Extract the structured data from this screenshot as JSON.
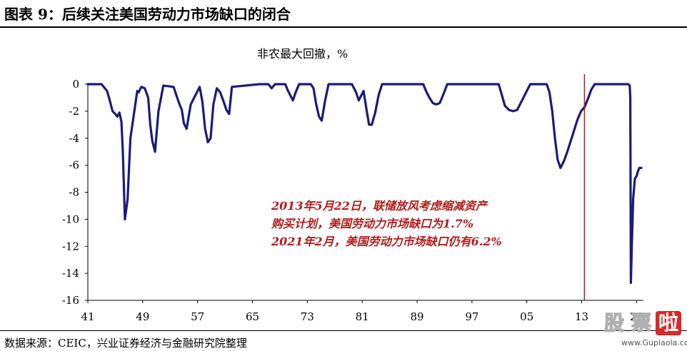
{
  "figure": {
    "title": "图表 9：后续关注美国劳动力市场缺口的闭合",
    "source": "数据来源：CEIC，兴业证券经济与金融研究院整理"
  },
  "annotation": {
    "line1": "2013年5月22日，联储放风考虑缩减资产",
    "line2": "购买计划，美国劳动力市场缺口为1.7%",
    "line3": "2021年2月，美国劳动力市场缺口仍有6.2%"
  },
  "watermark": {
    "chars": [
      "股",
      "票",
      "啦"
    ],
    "url": "www.Gupiaola.com"
  },
  "colors": {
    "series": "#1c1c7a",
    "marker": "#b31b1b",
    "annotation": "#b31b1b"
  },
  "chart_data": {
    "type": "line",
    "title": "非农最大回撤，%",
    "xlabel": "",
    "ylabel": "",
    "xlim": [
      1941,
      2022
    ],
    "ylim": [
      -16,
      0
    ],
    "x_ticks": [
      1941,
      1949,
      1957,
      1965,
      1973,
      1981,
      1989,
      1997,
      2005,
      2013,
      2021
    ],
    "x_tick_labels": [
      "41",
      "49",
      "57",
      "65",
      "73",
      "81",
      "89",
      "97",
      "05",
      "13",
      "21"
    ],
    "y_ticks": [
      0,
      -2,
      -4,
      -6,
      -8,
      -10,
      -12,
      -14,
      -16
    ],
    "y_tick_labels": [
      "0",
      "-2",
      "-4",
      "-6",
      "-8",
      "-10",
      "-12",
      "-14",
      "-16"
    ],
    "grid": false,
    "legend": "none",
    "marker_line_x": 2013.4,
    "series": [
      {
        "x": [
          1941.0,
          1943.0,
          1943.8,
          1944.2,
          1944.6,
          1945.0,
          1945.3,
          1945.6,
          1945.9,
          1946.1,
          1946.4,
          1946.8,
          1947.2,
          1948.2,
          1948.4,
          1948.8,
          1949.3,
          1949.8,
          1950.1,
          1950.4,
          1950.8,
          1951.3,
          1952.0,
          1953.5,
          1953.9,
          1954.3,
          1954.7,
          1955.0,
          1955.4,
          1956.0,
          1957.3,
          1957.7,
          1958.1,
          1958.5,
          1958.9,
          1959.3,
          1959.8,
          1960.3,
          1960.8,
          1961.2,
          1961.6,
          1962.0,
          1966.0,
          1967.3,
          1967.8,
          1968.3,
          1969.8,
          1970.1,
          1970.5,
          1970.9,
          1971.3,
          1971.8,
          1973.5,
          1973.9,
          1974.3,
          1974.7,
          1975.1,
          1975.6,
          1976.1,
          1979.5,
          1980.1,
          1980.5,
          1981.2,
          1981.7,
          1982.0,
          1982.4,
          1982.9,
          1983.4,
          1983.9,
          1989.9,
          1990.3,
          1990.8,
          1991.3,
          1991.8,
          1992.3,
          1992.8,
          1993.4,
          2000.9,
          2001.3,
          2001.8,
          2002.4,
          2003.0,
          2003.6,
          2004.2,
          2005.0,
          2005.5,
          2007.9,
          2008.3,
          2008.7,
          2009.1,
          2009.5,
          2009.9,
          2010.4,
          2010.9,
          2011.4,
          2011.9,
          2012.4,
          2012.9,
          2013.4,
          2013.9,
          2014.4,
          2014.9,
          2019.8,
          2020.0,
          2020.08,
          2020.17,
          2020.3,
          2020.5,
          2020.75,
          2021.0,
          2021.17,
          2021.4,
          2021.7
        ],
        "y": [
          0,
          0,
          -0.5,
          -1.2,
          -2.0,
          -2.2,
          -2.4,
          -2.1,
          -2.8,
          -5.0,
          -10.0,
          -8.5,
          -4.0,
          -0.5,
          -0.6,
          -0.2,
          -0.3,
          -1.0,
          -3.0,
          -4.2,
          -5.0,
          -2.0,
          -0.1,
          -0.2,
          -0.8,
          -1.4,
          -1.9,
          -2.9,
          -3.3,
          -1.5,
          -0.2,
          -1.3,
          -3.3,
          -4.3,
          -4.0,
          -1.5,
          -0.3,
          -0.6,
          -1.3,
          -1.9,
          -2.2,
          -0.2,
          0,
          0,
          -0.3,
          0,
          0,
          -0.4,
          -0.8,
          -1.2,
          -0.6,
          0,
          0,
          -0.3,
          -1.5,
          -2.4,
          -2.7,
          -1.2,
          0,
          0,
          -0.6,
          -1.2,
          -0.5,
          -2.1,
          -3.0,
          -3.0,
          -2.1,
          -0.8,
          0,
          0,
          -0.5,
          -1.0,
          -1.4,
          -1.5,
          -1.4,
          -0.8,
          0,
          0,
          -0.7,
          -1.6,
          -1.9,
          -2.0,
          -1.9,
          -1.3,
          -0.5,
          0,
          0,
          -0.6,
          -2.0,
          -4.0,
          -5.6,
          -6.2,
          -5.7,
          -5.0,
          -4.2,
          -3.4,
          -2.6,
          -2.0,
          -1.7,
          -1.1,
          -0.4,
          0,
          0,
          -0.1,
          -1.0,
          -14.7,
          -12.0,
          -8.5,
          -7.0,
          -6.8,
          -6.5,
          -6.2,
          -6.2
        ]
      }
    ]
  }
}
